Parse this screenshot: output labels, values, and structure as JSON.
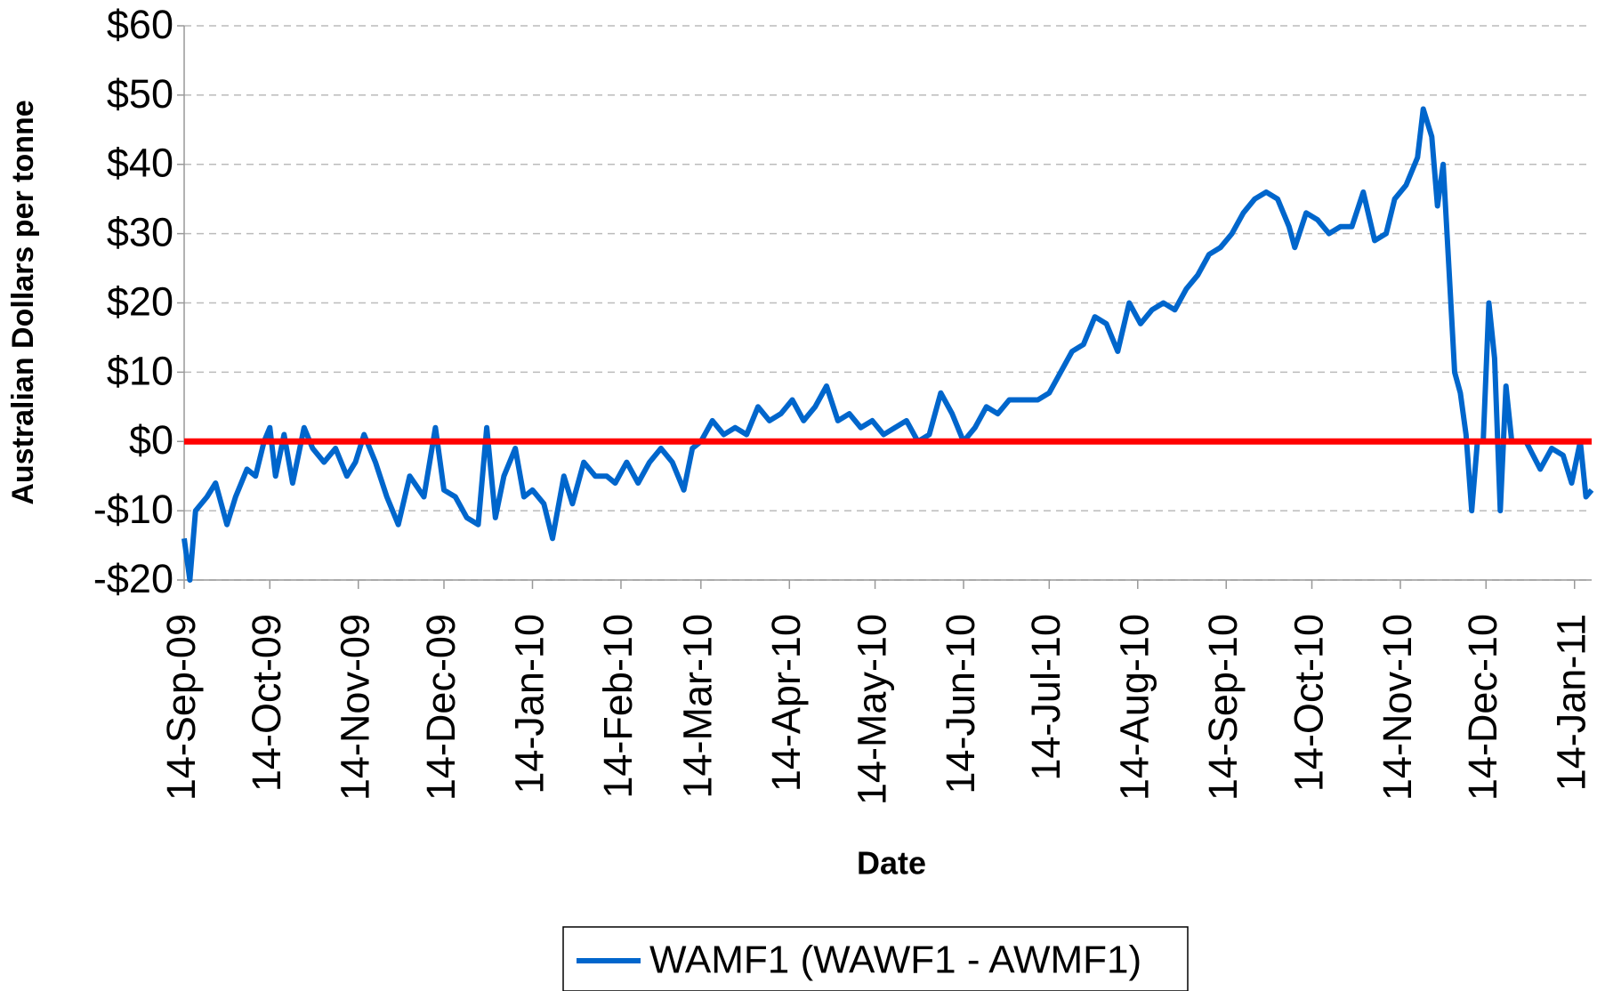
{
  "chart_data": {
    "type": "line",
    "y_label": "Australian Dollars per tonne",
    "x_label": "Date",
    "xlim": [
      "2009-09-14",
      "2011-01-20"
    ],
    "xticks": [
      {
        "value": "2009-09-14",
        "label": "14-Sep-09"
      },
      {
        "value": "2009-10-14",
        "label": "14-Oct-09"
      },
      {
        "value": "2009-11-14",
        "label": "14-Nov-09"
      },
      {
        "value": "2009-12-14",
        "label": "14-Dec-09"
      },
      {
        "value": "2010-01-14",
        "label": "14-Jan-10"
      },
      {
        "value": "2010-02-14",
        "label": "14-Feb-10"
      },
      {
        "value": "2010-03-14",
        "label": "14-Mar-10"
      },
      {
        "value": "2010-04-14",
        "label": "14-Apr-10"
      },
      {
        "value": "2010-05-14",
        "label": "14-May-10"
      },
      {
        "value": "2010-06-14",
        "label": "14-Jun-10"
      },
      {
        "value": "2010-07-14",
        "label": "14-Jul-10"
      },
      {
        "value": "2010-08-14",
        "label": "14-Aug-10"
      },
      {
        "value": "2010-09-14",
        "label": "14-Sep-10"
      },
      {
        "value": "2010-10-14",
        "label": "14-Oct-10"
      },
      {
        "value": "2010-11-14",
        "label": "14-Nov-10"
      },
      {
        "value": "2010-12-14",
        "label": "14-Dec-10"
      },
      {
        "value": "2011-01-14",
        "label": "14-Jan-11"
      }
    ],
    "ylim": [
      -20,
      60
    ],
    "yticks": [
      {
        "value": -20,
        "label": "-$20"
      },
      {
        "value": -10,
        "label": "-$10"
      },
      {
        "value": 0,
        "label": "$0"
      },
      {
        "value": 10,
        "label": "$10"
      },
      {
        "value": 20,
        "label": "$20"
      },
      {
        "value": 30,
        "label": "$30"
      },
      {
        "value": 40,
        "label": "$40"
      },
      {
        "value": 50,
        "label": "$50"
      },
      {
        "value": 60,
        "label": "$60"
      }
    ],
    "grid": true,
    "legend": "bottom",
    "reference_line": {
      "value": 0,
      "color": "#ff0000"
    },
    "x": [
      "2009-09-14",
      "2009-09-16",
      "2009-09-18",
      "2009-09-22",
      "2009-09-25",
      "2009-09-29",
      "2009-10-02",
      "2009-10-06",
      "2009-10-09",
      "2009-10-12",
      "2009-10-14",
      "2009-10-16",
      "2009-10-19",
      "2009-10-22",
      "2009-10-26",
      "2009-10-29",
      "2009-11-02",
      "2009-11-06",
      "2009-11-10",
      "2009-11-13",
      "2009-11-16",
      "2009-11-20",
      "2009-11-24",
      "2009-11-28",
      "2009-12-02",
      "2009-12-07",
      "2009-12-11",
      "2009-12-14",
      "2009-12-18",
      "2009-12-22",
      "2009-12-26",
      "2009-12-29",
      "2010-01-01",
      "2010-01-04",
      "2010-01-08",
      "2010-01-11",
      "2010-01-14",
      "2010-01-18",
      "2010-01-21",
      "2010-01-25",
      "2010-01-28",
      "2010-02-01",
      "2010-02-05",
      "2010-02-09",
      "2010-02-12",
      "2010-02-16",
      "2010-02-20",
      "2010-02-24",
      "2010-02-28",
      "2010-03-04",
      "2010-03-08",
      "2010-03-11",
      "2010-03-14",
      "2010-03-18",
      "2010-03-22",
      "2010-03-26",
      "2010-03-30",
      "2010-04-03",
      "2010-04-07",
      "2010-04-11",
      "2010-04-15",
      "2010-04-19",
      "2010-04-23",
      "2010-04-27",
      "2010-05-01",
      "2010-05-05",
      "2010-05-09",
      "2010-05-13",
      "2010-05-17",
      "2010-05-21",
      "2010-05-25",
      "2010-05-29",
      "2010-06-02",
      "2010-06-06",
      "2010-06-10",
      "2010-06-14",
      "2010-06-18",
      "2010-06-22",
      "2010-06-26",
      "2010-06-30",
      "2010-07-04",
      "2010-07-10",
      "2010-07-14",
      "2010-07-18",
      "2010-07-22",
      "2010-07-26",
      "2010-07-30",
      "2010-08-03",
      "2010-08-07",
      "2010-08-11",
      "2010-08-15",
      "2010-08-19",
      "2010-08-23",
      "2010-08-27",
      "2010-08-31",
      "2010-09-04",
      "2010-09-08",
      "2010-09-12",
      "2010-09-16",
      "2010-09-20",
      "2010-09-24",
      "2010-09-28",
      "2010-10-02",
      "2010-10-06",
      "2010-10-08",
      "2010-10-12",
      "2010-10-16",
      "2010-10-20",
      "2010-10-24",
      "2010-10-28",
      "2010-11-01",
      "2010-11-05",
      "2010-11-09",
      "2010-11-12",
      "2010-11-16",
      "2010-11-20",
      "2010-11-22",
      "2010-11-25",
      "2010-11-27",
      "2010-11-29",
      "2010-12-01",
      "2010-12-03",
      "2010-12-05",
      "2010-12-07",
      "2010-12-09",
      "2010-12-11",
      "2010-12-13",
      "2010-12-15",
      "2010-12-17",
      "2010-12-19",
      "2010-12-21",
      "2010-12-23",
      "2010-12-28",
      "2011-01-02",
      "2011-01-06",
      "2011-01-10",
      "2011-01-13",
      "2011-01-16",
      "2011-01-18",
      "2011-01-20"
    ],
    "series": [
      {
        "name": "WAMF1 (WAWF1 - AWMF1)",
        "color": "#0066cc",
        "values": [
          -14,
          -20,
          -10,
          -8,
          -6,
          -12,
          -8,
          -4,
          -5,
          0,
          2,
          -5,
          1,
          -6,
          2,
          -1,
          -3,
          -1,
          -5,
          -3,
          1,
          -3,
          -8,
          -12,
          -5,
          -8,
          2,
          -7,
          -8,
          -11,
          -12,
          2,
          -11,
          -5,
          -1,
          -8,
          -7,
          -9,
          -14,
          -5,
          -9,
          -3,
          -5,
          -5,
          -6,
          -3,
          -6,
          -3,
          -1,
          -3,
          -7,
          -1,
          0,
          3,
          1,
          2,
          1,
          5,
          3,
          4,
          6,
          3,
          5,
          8,
          3,
          4,
          2,
          3,
          1,
          2,
          3,
          0,
          1,
          7,
          4,
          0,
          2,
          5,
          4,
          6,
          6,
          6,
          7,
          10,
          13,
          14,
          18,
          17,
          13,
          20,
          17,
          19,
          20,
          19,
          22,
          24,
          27,
          28,
          30,
          33,
          35,
          36,
          35,
          31,
          28,
          33,
          32,
          30,
          31,
          31,
          36,
          29,
          30,
          35,
          37,
          41,
          48,
          44,
          34,
          40,
          25,
          10,
          7,
          1,
          -10,
          0,
          0,
          20,
          12,
          -10,
          8,
          0,
          0,
          -4,
          -1,
          -2,
          -6,
          0,
          -8,
          -7
        ]
      }
    ]
  }
}
